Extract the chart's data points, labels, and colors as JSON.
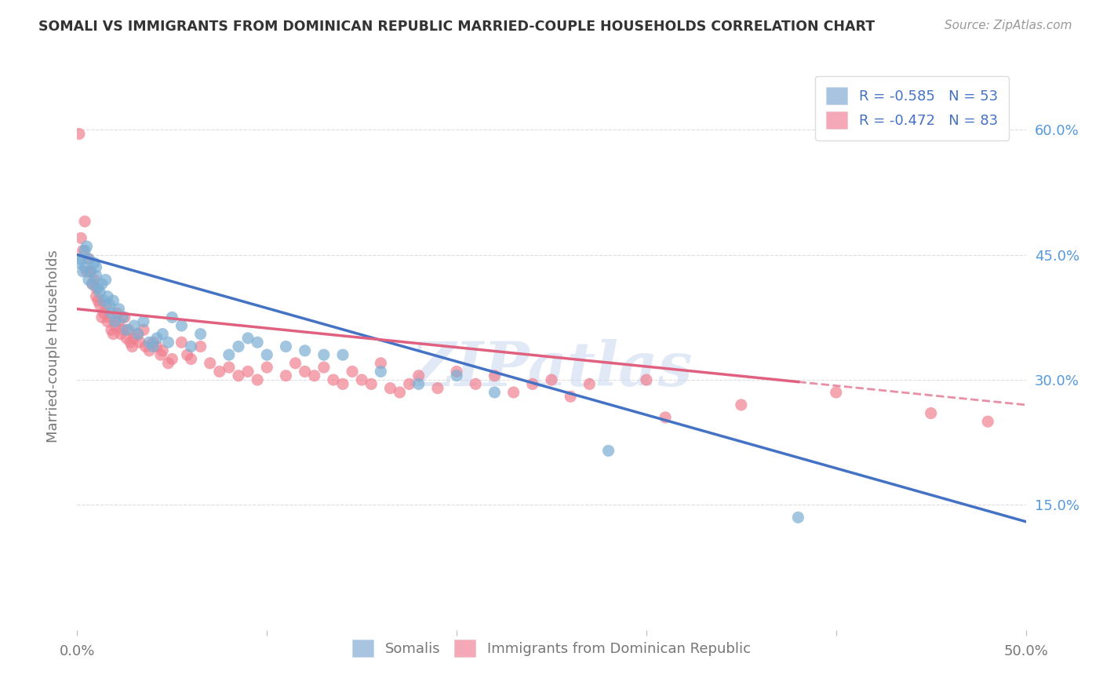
{
  "title": "SOMALI VS IMMIGRANTS FROM DOMINICAN REPUBLIC MARRIED-COUPLE HOUSEHOLDS CORRELATION CHART",
  "source": "Source: ZipAtlas.com",
  "ylabel": "Married-couple Households",
  "xlim": [
    0.0,
    0.5
  ],
  "ylim": [
    0.0,
    0.68
  ],
  "somali_color": "#7bafd4",
  "dominican_color": "#f08090",
  "somali_line_color": "#4472c4",
  "dominican_line_color": "#e06080",
  "watermark": "ZIPatlas",
  "background_color": "#ffffff",
  "grid_color": "#dddddd",
  "somali_points": [
    [
      0.001,
      0.44
    ],
    [
      0.002,
      0.445
    ],
    [
      0.003,
      0.43
    ],
    [
      0.004,
      0.435
    ],
    [
      0.004,
      0.455
    ],
    [
      0.005,
      0.46
    ],
    [
      0.006,
      0.445
    ],
    [
      0.006,
      0.42
    ],
    [
      0.007,
      0.43
    ],
    [
      0.008,
      0.415
    ],
    [
      0.009,
      0.44
    ],
    [
      0.01,
      0.425
    ],
    [
      0.01,
      0.435
    ],
    [
      0.011,
      0.41
    ],
    [
      0.012,
      0.405
    ],
    [
      0.013,
      0.415
    ],
    [
      0.014,
      0.395
    ],
    [
      0.015,
      0.42
    ],
    [
      0.016,
      0.4
    ],
    [
      0.017,
      0.39
    ],
    [
      0.018,
      0.38
    ],
    [
      0.019,
      0.395
    ],
    [
      0.02,
      0.37
    ],
    [
      0.022,
      0.385
    ],
    [
      0.024,
      0.375
    ],
    [
      0.026,
      0.36
    ],
    [
      0.03,
      0.365
    ],
    [
      0.032,
      0.355
    ],
    [
      0.035,
      0.37
    ],
    [
      0.038,
      0.345
    ],
    [
      0.04,
      0.34
    ],
    [
      0.042,
      0.35
    ],
    [
      0.045,
      0.355
    ],
    [
      0.048,
      0.345
    ],
    [
      0.05,
      0.375
    ],
    [
      0.055,
      0.365
    ],
    [
      0.06,
      0.34
    ],
    [
      0.065,
      0.355
    ],
    [
      0.08,
      0.33
    ],
    [
      0.085,
      0.34
    ],
    [
      0.09,
      0.35
    ],
    [
      0.095,
      0.345
    ],
    [
      0.1,
      0.33
    ],
    [
      0.11,
      0.34
    ],
    [
      0.12,
      0.335
    ],
    [
      0.13,
      0.33
    ],
    [
      0.14,
      0.33
    ],
    [
      0.16,
      0.31
    ],
    [
      0.18,
      0.295
    ],
    [
      0.2,
      0.305
    ],
    [
      0.22,
      0.285
    ],
    [
      0.28,
      0.215
    ],
    [
      0.38,
      0.135
    ]
  ],
  "dominican_points": [
    [
      0.001,
      0.595
    ],
    [
      0.002,
      0.47
    ],
    [
      0.003,
      0.455
    ],
    [
      0.004,
      0.49
    ],
    [
      0.005,
      0.43
    ],
    [
      0.006,
      0.445
    ],
    [
      0.007,
      0.43
    ],
    [
      0.008,
      0.415
    ],
    [
      0.009,
      0.42
    ],
    [
      0.01,
      0.4
    ],
    [
      0.01,
      0.41
    ],
    [
      0.011,
      0.395
    ],
    [
      0.012,
      0.39
    ],
    [
      0.013,
      0.375
    ],
    [
      0.014,
      0.38
    ],
    [
      0.015,
      0.39
    ],
    [
      0.016,
      0.37
    ],
    [
      0.017,
      0.375
    ],
    [
      0.018,
      0.36
    ],
    [
      0.019,
      0.355
    ],
    [
      0.02,
      0.365
    ],
    [
      0.021,
      0.38
    ],
    [
      0.022,
      0.37
    ],
    [
      0.023,
      0.355
    ],
    [
      0.024,
      0.36
    ],
    [
      0.025,
      0.375
    ],
    [
      0.026,
      0.35
    ],
    [
      0.027,
      0.36
    ],
    [
      0.028,
      0.345
    ],
    [
      0.029,
      0.34
    ],
    [
      0.03,
      0.35
    ],
    [
      0.032,
      0.355
    ],
    [
      0.033,
      0.345
    ],
    [
      0.035,
      0.36
    ],
    [
      0.036,
      0.34
    ],
    [
      0.038,
      0.335
    ],
    [
      0.04,
      0.345
    ],
    [
      0.042,
      0.34
    ],
    [
      0.044,
      0.33
    ],
    [
      0.045,
      0.335
    ],
    [
      0.048,
      0.32
    ],
    [
      0.05,
      0.325
    ],
    [
      0.055,
      0.345
    ],
    [
      0.058,
      0.33
    ],
    [
      0.06,
      0.325
    ],
    [
      0.065,
      0.34
    ],
    [
      0.07,
      0.32
    ],
    [
      0.075,
      0.31
    ],
    [
      0.08,
      0.315
    ],
    [
      0.085,
      0.305
    ],
    [
      0.09,
      0.31
    ],
    [
      0.095,
      0.3
    ],
    [
      0.1,
      0.315
    ],
    [
      0.11,
      0.305
    ],
    [
      0.115,
      0.32
    ],
    [
      0.12,
      0.31
    ],
    [
      0.125,
      0.305
    ],
    [
      0.13,
      0.315
    ],
    [
      0.135,
      0.3
    ],
    [
      0.14,
      0.295
    ],
    [
      0.145,
      0.31
    ],
    [
      0.15,
      0.3
    ],
    [
      0.155,
      0.295
    ],
    [
      0.16,
      0.32
    ],
    [
      0.165,
      0.29
    ],
    [
      0.17,
      0.285
    ],
    [
      0.175,
      0.295
    ],
    [
      0.18,
      0.305
    ],
    [
      0.19,
      0.29
    ],
    [
      0.2,
      0.31
    ],
    [
      0.21,
      0.295
    ],
    [
      0.22,
      0.305
    ],
    [
      0.23,
      0.285
    ],
    [
      0.24,
      0.295
    ],
    [
      0.25,
      0.3
    ],
    [
      0.26,
      0.28
    ],
    [
      0.27,
      0.295
    ],
    [
      0.3,
      0.3
    ],
    [
      0.31,
      0.255
    ],
    [
      0.35,
      0.27
    ],
    [
      0.4,
      0.285
    ],
    [
      0.45,
      0.26
    ],
    [
      0.48,
      0.25
    ]
  ],
  "somali_line": {
    "x0": 0.0,
    "y0": 0.45,
    "x1": 0.5,
    "y1": 0.13
  },
  "dominican_line": {
    "x0": 0.0,
    "y0": 0.385,
    "x1": 0.5,
    "y1": 0.27
  }
}
